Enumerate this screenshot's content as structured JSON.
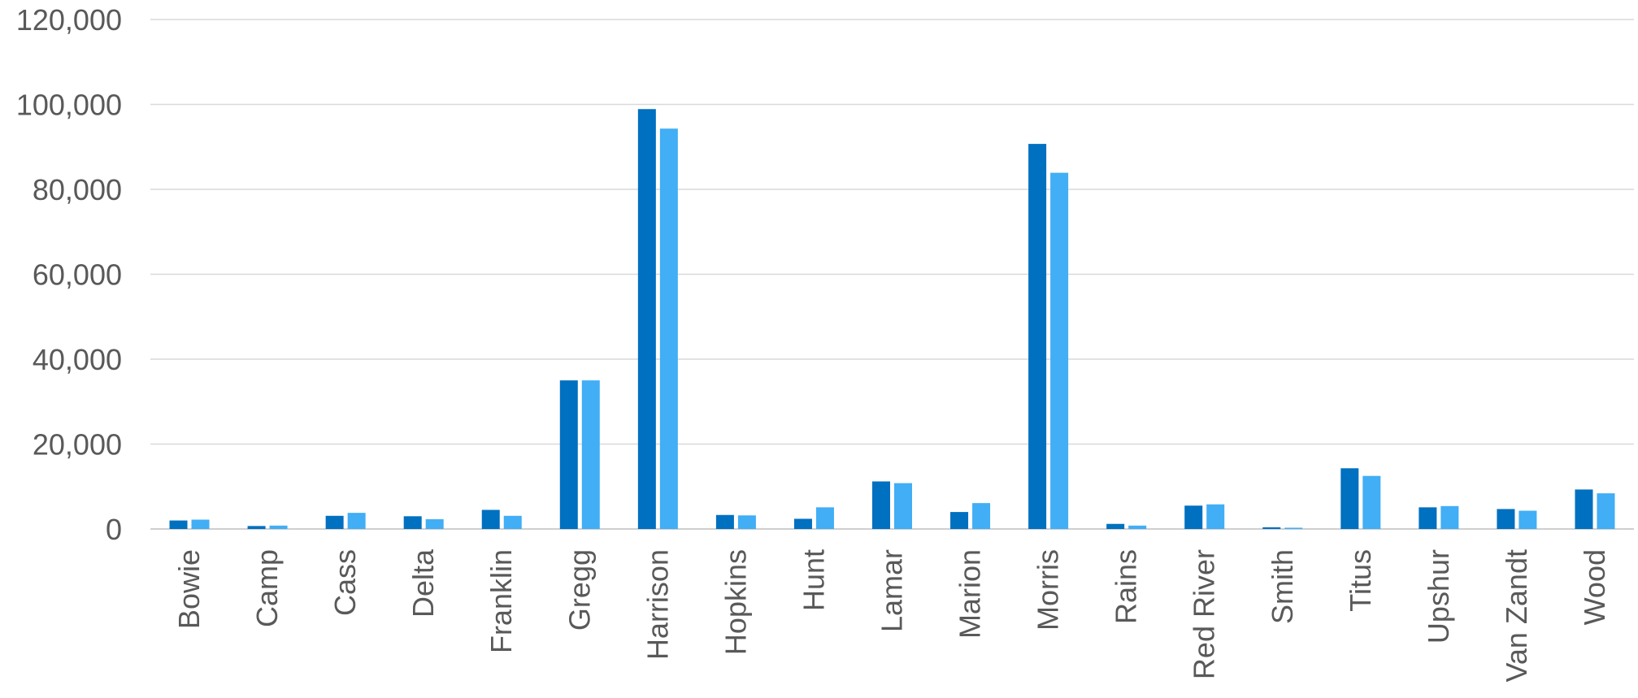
{
  "chart_data": {
    "type": "bar",
    "title": "",
    "xlabel": "",
    "ylabel": "",
    "ylim": [
      0,
      120000
    ],
    "yticks": [
      0,
      20000,
      40000,
      60000,
      80000,
      100000,
      120000
    ],
    "ytick_labels": [
      "0",
      "20,000",
      "40,000",
      "60,000",
      "80,000",
      "100,000",
      "120,000"
    ],
    "grid": true,
    "legend": "none",
    "categories": [
      "Bowie",
      "Camp",
      "Cass",
      "Delta",
      "Franklin",
      "Gregg",
      "Harrison",
      "Hopkins",
      "Hunt",
      "Lamar",
      "Marion",
      "Morris",
      "Rains",
      "Red River",
      "Smith",
      "Titus",
      "Upshur",
      "Van Zandt",
      "Wood"
    ],
    "series": [
      {
        "color": "#0070c0",
        "values": [
          2000,
          700,
          3100,
          3000,
          4500,
          35000,
          98900,
          3300,
          2400,
          11200,
          4000,
          90700,
          1200,
          5500,
          400,
          14300,
          5100,
          4700,
          9300
        ]
      },
      {
        "color": "#41aef5",
        "values": [
          2200,
          800,
          3800,
          2300,
          3100,
          35000,
          94300,
          3200,
          5100,
          10800,
          6100,
          83900,
          800,
          5800,
          300,
          12500,
          5400,
          4300,
          8400
        ]
      }
    ]
  }
}
